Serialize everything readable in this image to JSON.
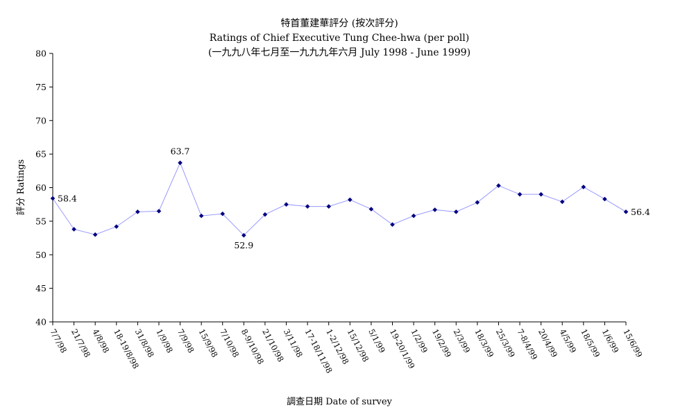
{
  "chart_data": {
    "type": "line",
    "title": "特首董建華評分 (按次評分)",
    "subtitle": "Ratings of Chief Executive Tung Chee-hwa (per poll)",
    "subtitle2": "(一九九八年七月至一九九九年六月 July 1998 - June 1999)",
    "xlabel": "調查日期 Date of survey",
    "ylabel": "評分 Ratings",
    "ylim": [
      40,
      80
    ],
    "yticks": [
      40,
      45,
      50,
      55,
      60,
      65,
      70,
      75,
      80
    ],
    "grid": false,
    "legend": "none",
    "line_color": "#9999ff",
    "marker_color": "#000080",
    "categories": [
      "7/7/98",
      "21/7/98",
      "4/8/98",
      "18-19/8/98",
      "31/8/98",
      "1/9/98",
      "7/9/98",
      "15/9/98",
      "7/10/98",
      "8-9/10/98",
      "21/10/98",
      "3/11/98",
      "17-18/11/98",
      "1-2/12/98",
      "15/12/98",
      "5/1/99",
      "19-20/1/99",
      "1/2/99",
      "19/2/99",
      "2/3/99",
      "18/3/99",
      "25/3/99",
      "7-8/4/99",
      "20/4/99",
      "4/5/99",
      "18/5/99",
      "1/6/99",
      "15/6/99"
    ],
    "series": [
      {
        "values": [
          58.4,
          53.8,
          53.0,
          54.2,
          56.4,
          56.5,
          63.7,
          55.8,
          56.1,
          52.9,
          56.0,
          57.5,
          57.2,
          57.2,
          58.2,
          56.8,
          54.5,
          55.8,
          56.7,
          56.4,
          57.8,
          60.3,
          59.0,
          59.0,
          57.9,
          60.1,
          58.3,
          56.4
        ]
      }
    ],
    "data_labels": [
      {
        "index": 0,
        "text": "58.4",
        "position": "right"
      },
      {
        "index": 6,
        "text": "63.7",
        "position": "above"
      },
      {
        "index": 9,
        "text": "52.9",
        "position": "below"
      },
      {
        "index": 27,
        "text": "56.4",
        "position": "right"
      }
    ]
  }
}
